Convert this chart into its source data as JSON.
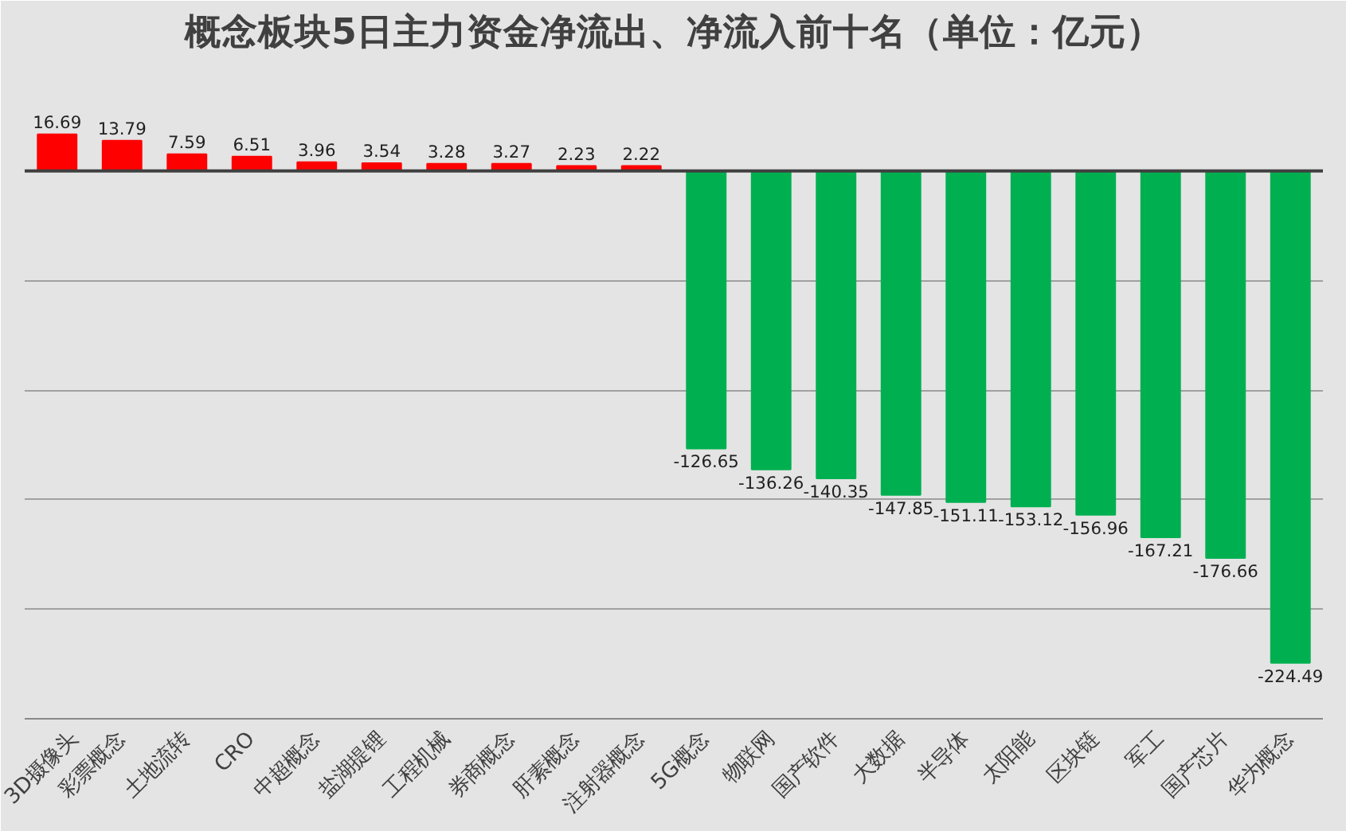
{
  "chart_data": {
    "type": "bar",
    "title": "概念板块5日主力资金净流出、净流入前十名（单位：亿元）",
    "categories": [
      "3D摄像头",
      "彩票概念",
      "土地流转",
      "CRO",
      "中超概念",
      "盐湖提锂",
      "工程机械",
      "券商概念",
      "肝素概念",
      "注射器概念",
      "5G概念",
      "物联网",
      "国产软件",
      "大数据",
      "半导体",
      "太阳能",
      "区块链",
      "军工",
      "国产芯片",
      "华为概念"
    ],
    "values": [
      16.69,
      13.79,
      7.59,
      6.51,
      3.96,
      3.54,
      3.28,
      3.27,
      2.23,
      2.22,
      -126.65,
      -136.26,
      -140.35,
      -147.85,
      -151.11,
      -153.12,
      -156.96,
      -167.21,
      -176.66,
      -224.49
    ],
    "colors": [
      "#ff0000",
      "#ff0000",
      "#ff0000",
      "#ff0000",
      "#ff0000",
      "#ff0000",
      "#ff0000",
      "#ff0000",
      "#ff0000",
      "#ff0000",
      "#00b050",
      "#00b050",
      "#00b050",
      "#00b050",
      "#00b050",
      "#00b050",
      "#00b050",
      "#00b050",
      "#00b050",
      "#00b050"
    ],
    "ylim": [
      -250,
      50
    ],
    "yticks": [
      {
        "value": -250,
        "label": null
      },
      {
        "value": -200,
        "label": null
      },
      {
        "value": -150,
        "label": null
      },
      {
        "value": -100,
        "label": null
      },
      {
        "value": -50,
        "label": null
      }
    ],
    "ref_lines": [
      {
        "axis": "y",
        "value": 0,
        "label": null,
        "color": "#404040"
      }
    ],
    "grid": "y",
    "tick_labels": "x",
    "data_labels": true
  }
}
